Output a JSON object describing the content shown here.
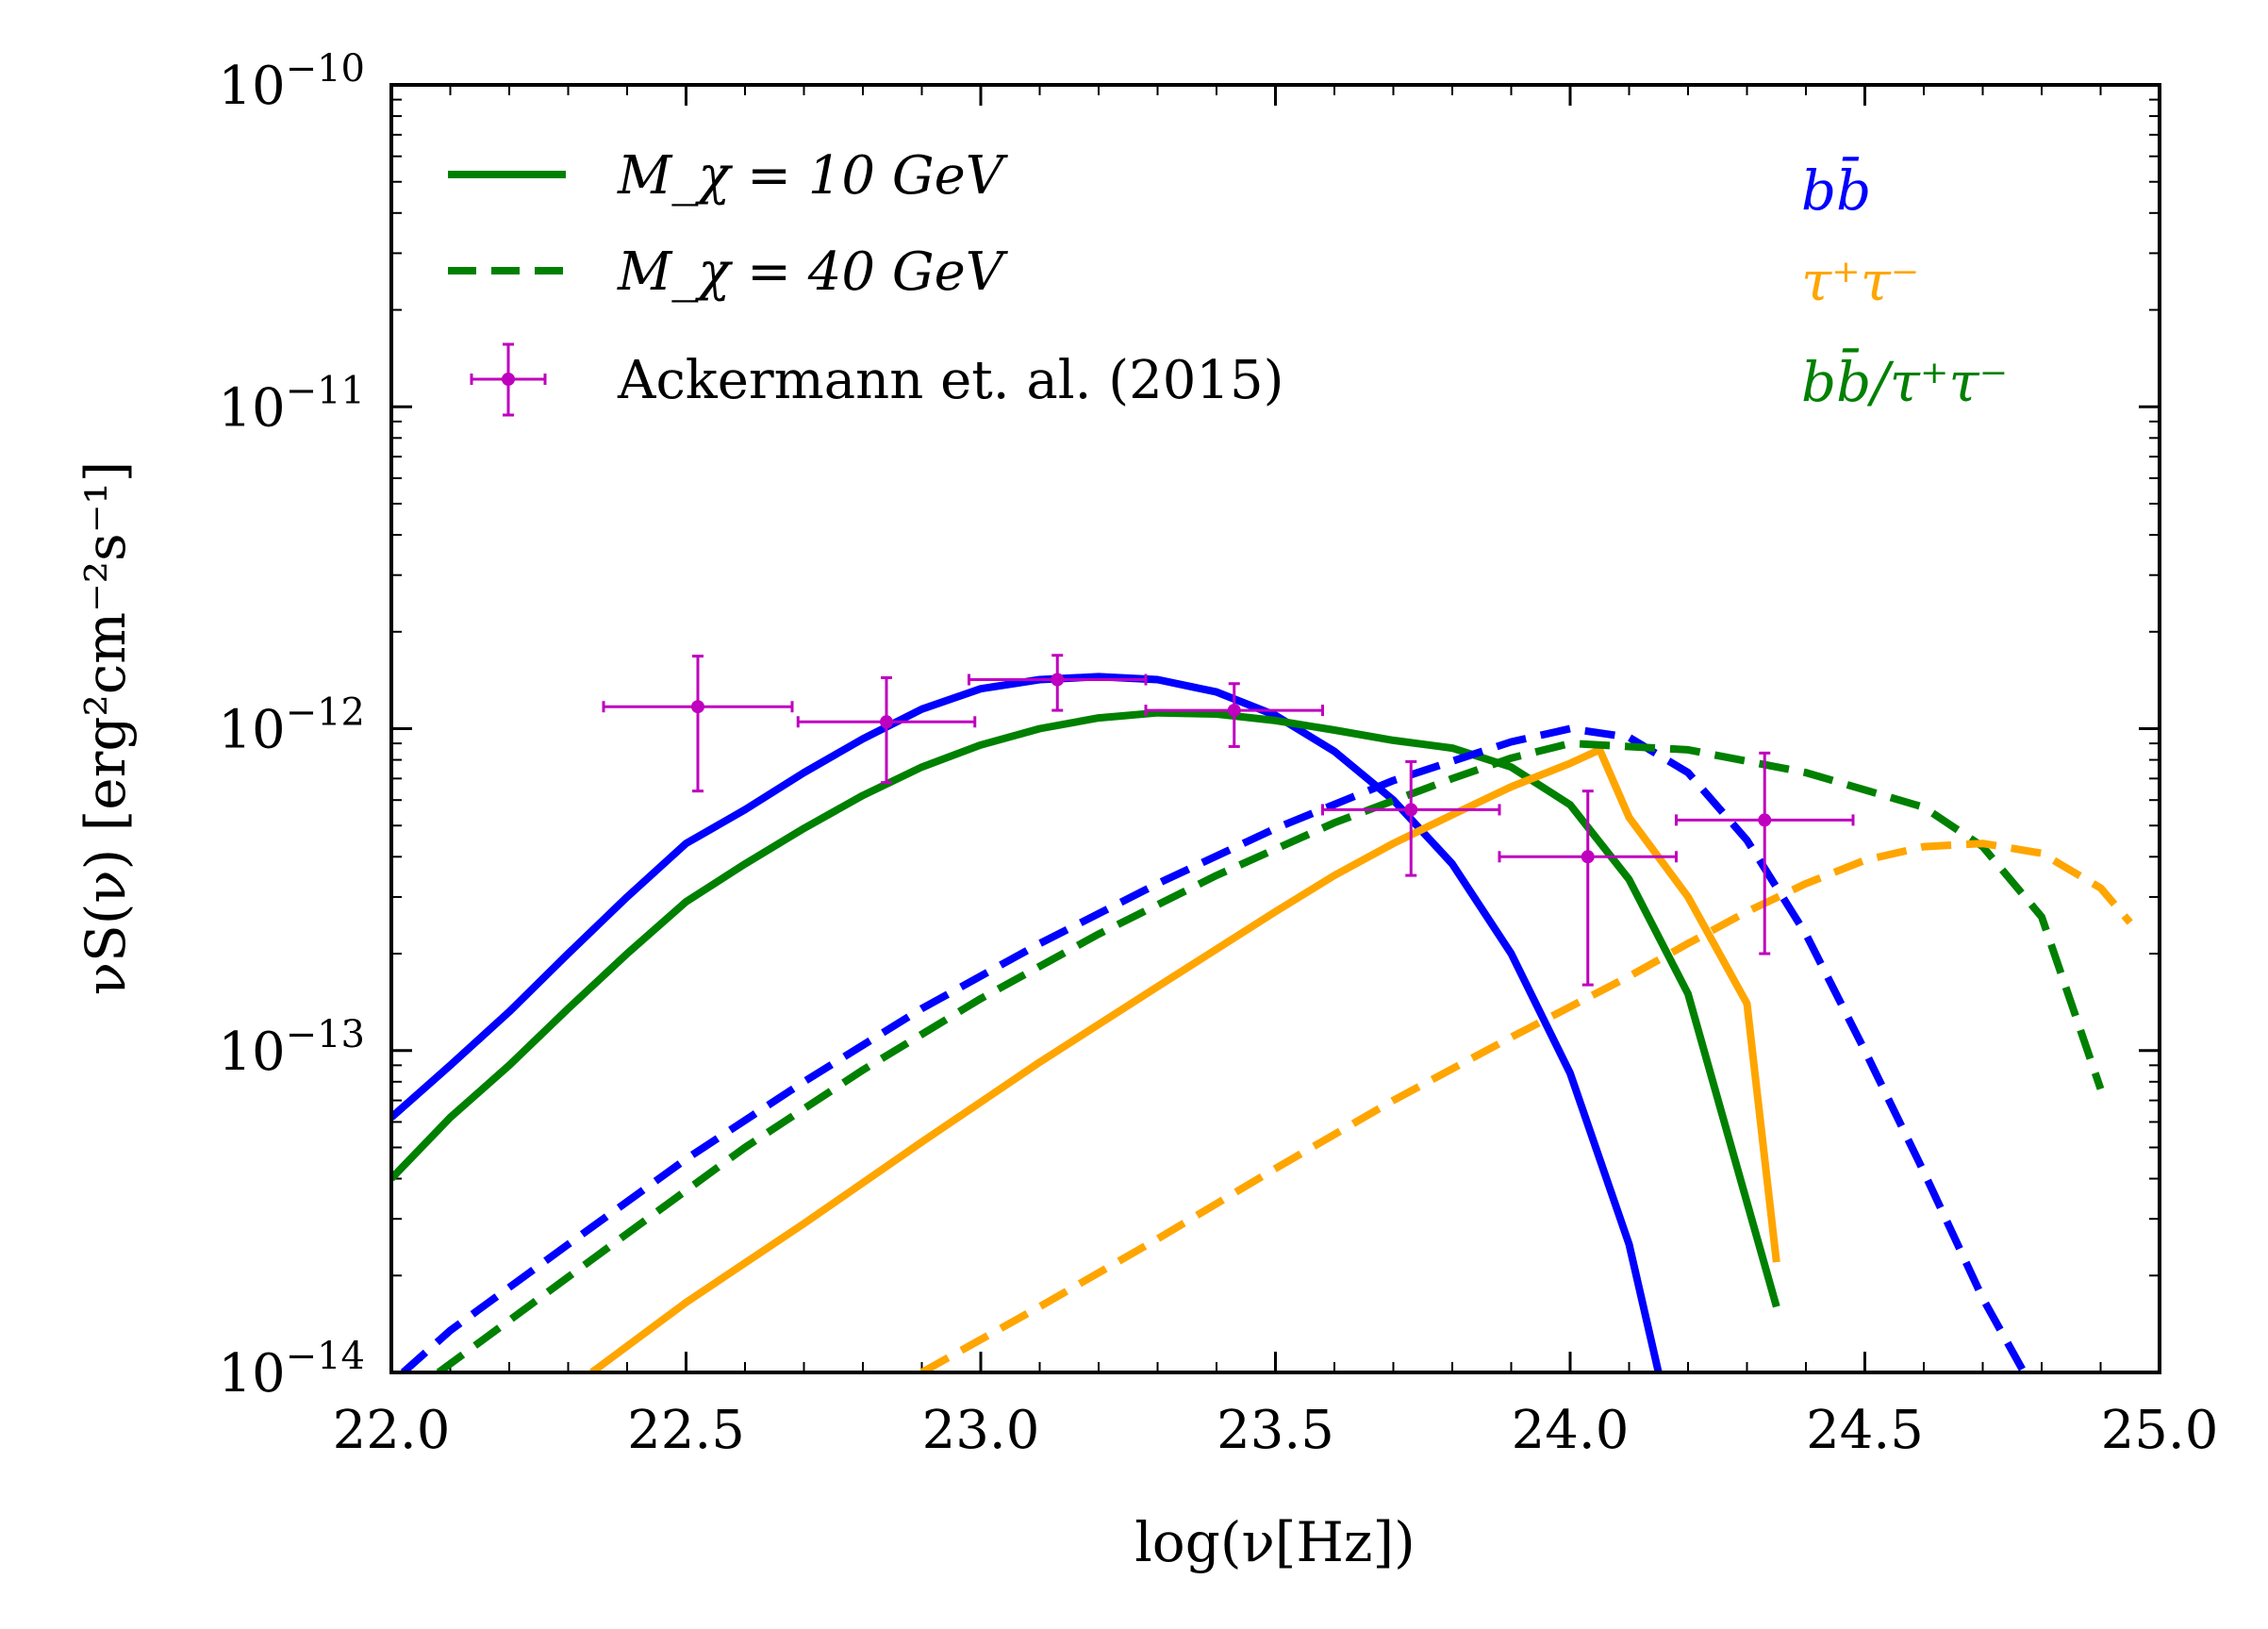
{
  "chart_data": {
    "type": "line",
    "xlabel": "log(ν[Hz])",
    "ylabel": "νS(ν) [erg²cm⁻²s⁻¹]",
    "xlim": [
      22.0,
      25.0
    ],
    "ylim": [
      1e-14,
      1e-10
    ],
    "yscale": "log",
    "x_ticks": [
      "22.0",
      "22.5",
      "23.0",
      "23.5",
      "24.0",
      "24.5",
      "25.0"
    ],
    "y_ticks": [
      {
        "value": 1e-14,
        "base": "10",
        "exp": "−14"
      },
      {
        "value": 1e-13,
        "base": "10",
        "exp": "−13"
      },
      {
        "value": 1e-12,
        "base": "10",
        "exp": "−12"
      },
      {
        "value": 1e-11,
        "base": "10",
        "exp": "−11"
      },
      {
        "value": 1e-10,
        "base": "10",
        "exp": "−10"
      }
    ],
    "legend": {
      "placement": "top-left",
      "entries": [
        {
          "label": "M_χ = 10 GeV",
          "style": "solid",
          "color": "#008000"
        },
        {
          "label": "M_χ = 40 GeV",
          "style": "dashed",
          "color": "#008000"
        },
        {
          "label": "Ackermann et. al. (2015)",
          "style": "errorbar",
          "color": "#bf00bf"
        }
      ]
    },
    "channel_labels": [
      {
        "text": "bb̄",
        "color": "#0000ff"
      },
      {
        "text": "τ⁺τ⁻",
        "color": "#ffa500"
      },
      {
        "text": "bb̄/τ⁺τ⁻",
        "color": "#008000"
      }
    ],
    "series": [
      {
        "channel": "bb̄",
        "mass": "10 GeV",
        "style": "solid",
        "color": "#0000ff",
        "points": [
          [
            22.0,
            6.2e-14
          ],
          [
            22.1,
            9e-14
          ],
          [
            22.2,
            1.32e-13
          ],
          [
            22.3,
            2e-13
          ],
          [
            22.4,
            3e-13
          ],
          [
            22.5,
            4.4e-13
          ],
          [
            22.6,
            5.6e-13
          ],
          [
            22.7,
            7.3e-13
          ],
          [
            22.8,
            9.3e-13
          ],
          [
            22.9,
            1.15e-12
          ],
          [
            23.0,
            1.33e-12
          ],
          [
            23.1,
            1.42e-12
          ],
          [
            23.2,
            1.45e-12
          ],
          [
            23.3,
            1.42e-12
          ],
          [
            23.4,
            1.3e-12
          ],
          [
            23.5,
            1.1e-12
          ],
          [
            23.6,
            8.5e-13
          ],
          [
            23.7,
            6e-13
          ],
          [
            23.8,
            3.8e-13
          ],
          [
            23.9,
            2e-13
          ],
          [
            24.0,
            8.5e-14
          ],
          [
            24.1,
            2.5e-14
          ],
          [
            24.15,
            1e-14
          ]
        ]
      },
      {
        "channel": "bb̄/τ⁺τ⁻",
        "mass": "10 GeV",
        "style": "solid",
        "color": "#008000",
        "points": [
          [
            22.0,
            4e-14
          ],
          [
            22.1,
            6.2e-14
          ],
          [
            22.2,
            9e-14
          ],
          [
            22.3,
            1.35e-13
          ],
          [
            22.4,
            2e-13
          ],
          [
            22.5,
            2.9e-13
          ],
          [
            22.6,
            3.8e-13
          ],
          [
            22.7,
            4.9e-13
          ],
          [
            22.8,
            6.2e-13
          ],
          [
            22.9,
            7.6e-13
          ],
          [
            23.0,
            8.9e-13
          ],
          [
            23.1,
            1e-12
          ],
          [
            23.2,
            1.08e-12
          ],
          [
            23.3,
            1.12e-12
          ],
          [
            23.4,
            1.11e-12
          ],
          [
            23.5,
            1.06e-12
          ],
          [
            23.6,
            9.9e-13
          ],
          [
            23.7,
            9.2e-13
          ],
          [
            23.8,
            8.7e-13
          ],
          [
            23.9,
            7.6e-13
          ],
          [
            24.0,
            5.8e-13
          ],
          [
            24.1,
            3.4e-13
          ],
          [
            24.2,
            1.5e-13
          ],
          [
            24.35,
            1.6e-14
          ]
        ]
      },
      {
        "channel": "τ⁺τ⁻",
        "mass": "10 GeV",
        "style": "solid",
        "color": "#ffa500",
        "points": [
          [
            22.34,
            1e-14
          ],
          [
            22.5,
            1.65e-14
          ],
          [
            22.7,
            2.9e-14
          ],
          [
            22.9,
            5.2e-14
          ],
          [
            23.1,
            9.2e-14
          ],
          [
            23.3,
            1.58e-13
          ],
          [
            23.5,
            2.7e-13
          ],
          [
            23.6,
            3.5e-13
          ],
          [
            23.7,
            4.4e-13
          ],
          [
            23.8,
            5.4e-13
          ],
          [
            23.9,
            6.6e-13
          ],
          [
            24.0,
            7.8e-13
          ],
          [
            24.05,
            8.6e-13
          ],
          [
            24.1,
            5.3e-13
          ],
          [
            24.2,
            3e-13
          ],
          [
            24.3,
            1.4e-13
          ],
          [
            24.35,
            2.2e-14
          ]
        ]
      },
      {
        "channel": "bb̄",
        "mass": "40 GeV",
        "style": "dashed",
        "color": "#0000ff",
        "points": [
          [
            22.02,
            1e-14
          ],
          [
            22.1,
            1.35e-14
          ],
          [
            22.3,
            2.5e-14
          ],
          [
            22.5,
            4.6e-14
          ],
          [
            22.7,
            8e-14
          ],
          [
            22.9,
            1.35e-13
          ],
          [
            23.1,
            2.15e-13
          ],
          [
            23.3,
            3.3e-13
          ],
          [
            23.5,
            4.9e-13
          ],
          [
            23.7,
            6.9e-13
          ],
          [
            23.9,
            9.1e-13
          ],
          [
            24.0,
            1e-12
          ],
          [
            24.1,
            9.4e-13
          ],
          [
            24.2,
            7.3e-13
          ],
          [
            24.3,
            4.5e-13
          ],
          [
            24.4,
            2.3e-13
          ],
          [
            24.5,
            1e-13
          ],
          [
            24.6,
            4.2e-14
          ],
          [
            24.7,
            1.7e-14
          ],
          [
            24.77,
            1e-14
          ]
        ]
      },
      {
        "channel": "bb̄/τ⁺τ⁻",
        "mass": "40 GeV",
        "style": "dashed",
        "color": "#008000",
        "points": [
          [
            22.08,
            1e-14
          ],
          [
            22.2,
            1.45e-14
          ],
          [
            22.4,
            2.7e-14
          ],
          [
            22.6,
            5e-14
          ],
          [
            22.8,
            8.7e-14
          ],
          [
            23.0,
            1.45e-13
          ],
          [
            23.2,
            2.3e-13
          ],
          [
            23.4,
            3.5e-13
          ],
          [
            23.6,
            5.1e-13
          ],
          [
            23.8,
            7e-13
          ],
          [
            23.9,
            8.1e-13
          ],
          [
            24.0,
            9e-13
          ],
          [
            24.2,
            8.6e-13
          ],
          [
            24.4,
            7.3e-13
          ],
          [
            24.6,
            5.7e-13
          ],
          [
            24.7,
            4.3e-13
          ],
          [
            24.8,
            2.6e-13
          ],
          [
            24.9,
            7.6e-14
          ]
        ]
      },
      {
        "channel": "τ⁺τ⁻",
        "mass": "40 GeV",
        "style": "dashed",
        "color": "#ffa500",
        "points": [
          [
            22.9,
            1e-14
          ],
          [
            23.1,
            1.6e-14
          ],
          [
            23.3,
            2.6e-14
          ],
          [
            23.5,
            4.3e-14
          ],
          [
            23.7,
            7e-14
          ],
          [
            23.9,
            1.1e-13
          ],
          [
            24.1,
            1.7e-13
          ],
          [
            24.2,
            2.15e-13
          ],
          [
            24.3,
            2.7e-13
          ],
          [
            24.4,
            3.3e-13
          ],
          [
            24.5,
            3.9e-13
          ],
          [
            24.6,
            4.3e-13
          ],
          [
            24.7,
            4.4e-13
          ],
          [
            24.8,
            4.1e-13
          ],
          [
            24.9,
            3.2e-13
          ],
          [
            24.95,
            2.5e-13
          ]
        ]
      }
    ],
    "data_points": {
      "name": "Ackermann et. al. (2015)",
      "color": "#bf00bf",
      "points": [
        {
          "x": 22.52,
          "y": 1.17e-12,
          "xerr": 0.16,
          "ylo": 6.4e-13,
          "yhi": 1.68e-12
        },
        {
          "x": 22.84,
          "y": 1.05e-12,
          "xerr": 0.15,
          "ylo": 6.8e-13,
          "yhi": 1.44e-12
        },
        {
          "x": 23.13,
          "y": 1.42e-12,
          "xerr": 0.15,
          "ylo": 1.14e-12,
          "yhi": 1.69e-12
        },
        {
          "x": 23.43,
          "y": 1.14e-12,
          "xerr": 0.15,
          "ylo": 8.8e-13,
          "yhi": 1.38e-12
        },
        {
          "x": 23.73,
          "y": 5.6e-13,
          "xerr": 0.15,
          "ylo": 3.5e-13,
          "yhi": 7.9e-13
        },
        {
          "x": 24.03,
          "y": 4e-13,
          "xerr": 0.15,
          "ylo": 1.6e-13,
          "yhi": 6.4e-13
        },
        {
          "x": 24.33,
          "y": 5.2e-13,
          "xerr": 0.15,
          "ylo": 2e-13,
          "yhi": 8.4e-13
        }
      ]
    }
  }
}
